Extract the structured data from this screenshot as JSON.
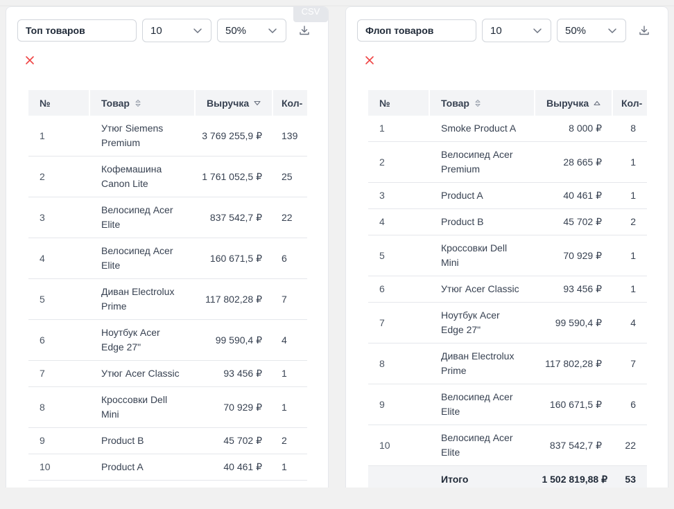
{
  "left": {
    "name_value": "Топ товаров",
    "count_select": "10",
    "percent_select": "50%",
    "tooltip": "CSV",
    "columns": [
      "№",
      "Товар",
      "Выручка",
      "Кол-"
    ],
    "rows": [
      {
        "num": "1",
        "name": "Утюг Siemens Premium",
        "revenue": "3 769 255,9 ₽",
        "qty": "139"
      },
      {
        "num": "2",
        "name": "Кофемашина Canon Lite",
        "revenue": "1 761 052,5 ₽",
        "qty": "25"
      },
      {
        "num": "3",
        "name": "Велосипед Acer Elite",
        "revenue": "837 542,7 ₽",
        "qty": "22"
      },
      {
        "num": "4",
        "name": "Велосипед Acer Elite",
        "revenue": "160 671,5 ₽",
        "qty": "6"
      },
      {
        "num": "5",
        "name": "Диван Electrolux Prime",
        "revenue": "117 802,28 ₽",
        "qty": "7"
      },
      {
        "num": "6",
        "name": "Ноутбук Acer Edge 27\"",
        "revenue": "99 590,4 ₽",
        "qty": "4"
      },
      {
        "num": "7",
        "name": "Утюг Acer Classic",
        "revenue": "93 456 ₽",
        "qty": "1"
      },
      {
        "num": "8",
        "name": "Кроссовки Dell Mini",
        "revenue": "70 929 ₽",
        "qty": "1"
      },
      {
        "num": "9",
        "name": "Product B",
        "revenue": "45 702 ₽",
        "qty": "2"
      },
      {
        "num": "10",
        "name": "Product A",
        "revenue": "40 461 ₽",
        "qty": "1"
      }
    ]
  },
  "right": {
    "name_value": "Флоп товаров",
    "count_select": "10",
    "percent_select": "50%",
    "columns": [
      "№",
      "Товар",
      "Выручка",
      "Кол-"
    ],
    "rows": [
      {
        "num": "1",
        "name": "Smoke Product A",
        "revenue": "8 000 ₽",
        "qty": "8"
      },
      {
        "num": "2",
        "name": "Велосипед Acer Premium",
        "revenue": "28 665 ₽",
        "qty": "1"
      },
      {
        "num": "3",
        "name": "Product A",
        "revenue": "40 461 ₽",
        "qty": "1"
      },
      {
        "num": "4",
        "name": "Product B",
        "revenue": "45 702 ₽",
        "qty": "2"
      },
      {
        "num": "5",
        "name": "Кроссовки Dell Mini",
        "revenue": "70 929 ₽",
        "qty": "1"
      },
      {
        "num": "6",
        "name": "Утюг Acer Classic",
        "revenue": "93 456 ₽",
        "qty": "1"
      },
      {
        "num": "7",
        "name": "Ноутбук Acer Edge 27\"",
        "revenue": "99 590,4 ₽",
        "qty": "4"
      },
      {
        "num": "8",
        "name": "Диван Electrolux Prime",
        "revenue": "117 802,28 ₽",
        "qty": "7"
      },
      {
        "num": "9",
        "name": "Велосипед Acer Elite",
        "revenue": "160 671,5 ₽",
        "qty": "6"
      },
      {
        "num": "10",
        "name": "Велосипед Acer Elite",
        "revenue": "837 542,7 ₽",
        "qty": "22"
      }
    ],
    "total": {
      "label": "Итого",
      "revenue": "1 502 819,88 ₽",
      "qty": "53"
    }
  },
  "icons": {
    "download": "download-icon",
    "close": "close-icon",
    "chevron": "chevron-down-icon",
    "sort": "sort-icon"
  },
  "colors": {
    "close_red": "#ef4444",
    "header_bg": "#f3f4f6"
  }
}
